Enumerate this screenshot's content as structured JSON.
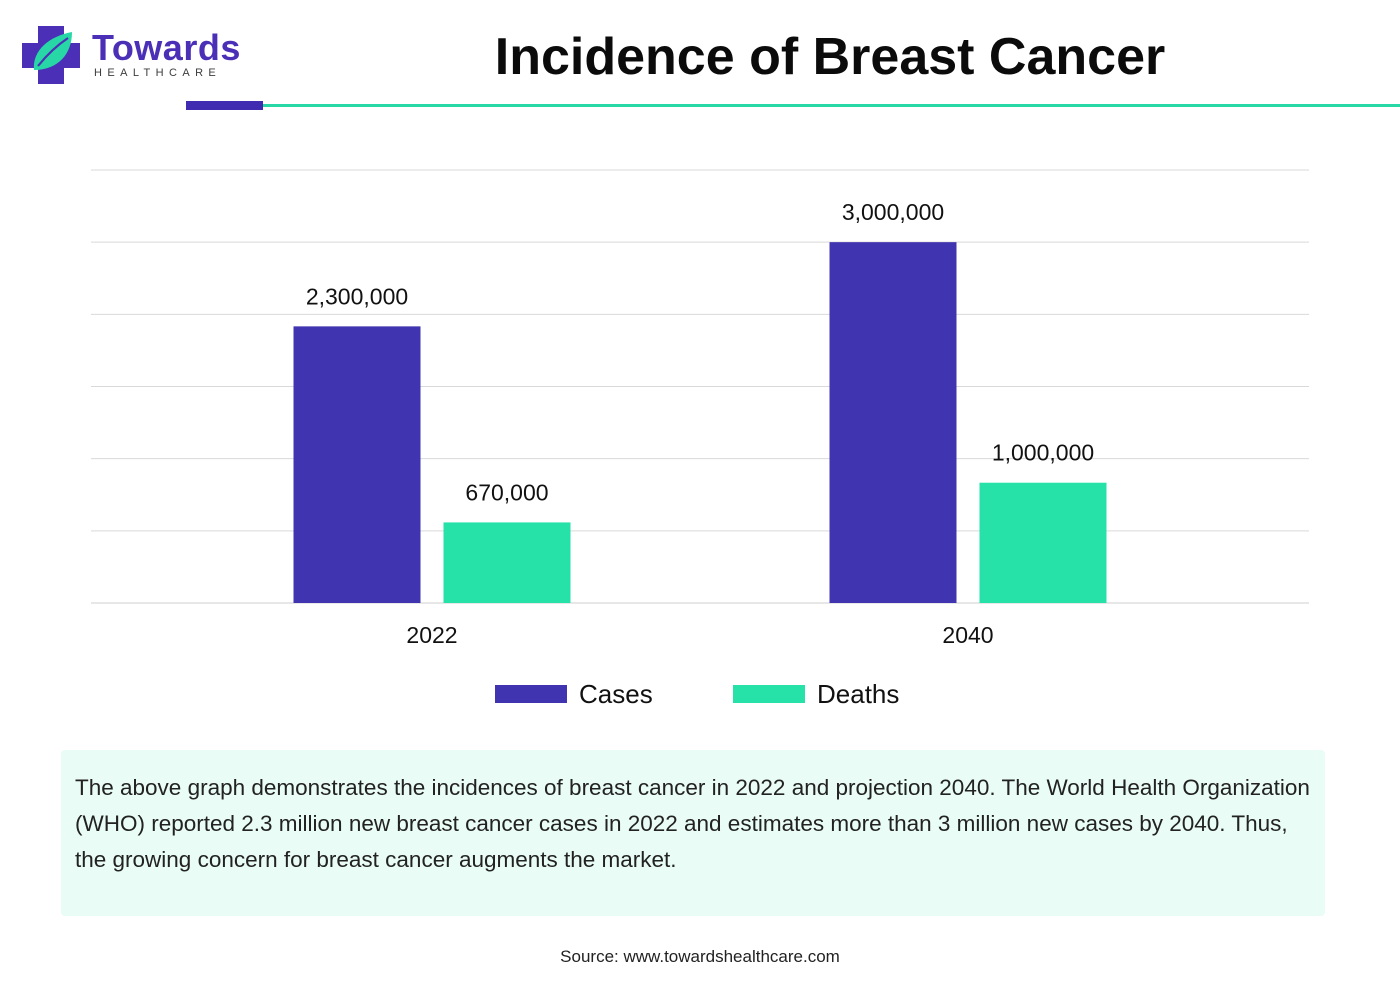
{
  "header": {
    "logo_name": "Towards",
    "logo_sub": "HEALTHCARE",
    "title": "Incidence of Breast Cancer"
  },
  "colors": {
    "brand": "#4b2fb6",
    "cases": "#4134b0",
    "deaths": "#26e2a8",
    "accent_line": "#27d8a6",
    "note_bg": "#e9fcf5",
    "grid": "#d9d9d9"
  },
  "chart_data": {
    "type": "bar",
    "title": "Incidence of Breast Cancer",
    "categories": [
      "2022",
      "2040"
    ],
    "series": [
      {
        "name": "Cases",
        "values": [
          2300000,
          3000000
        ],
        "labels": [
          "2,300,000",
          "3,000,000"
        ]
      },
      {
        "name": "Deaths",
        "values": [
          670000,
          1000000
        ],
        "labels": [
          "670,000",
          "1,000,000"
        ]
      }
    ],
    "xlabel": "",
    "ylabel": "",
    "ylim": [
      0,
      3600000
    ],
    "grid": true,
    "legend": "bottom"
  },
  "legend": {
    "cases_label": "Cases",
    "deaths_label": "Deaths"
  },
  "note": {
    "text": "The above graph demonstrates the incidences of breast cancer in 2022 and projection 2040. The World Health Organization (WHO) reported 2.3 million new breast cancer cases in 2022 and estimates more than 3 million new cases by 2040. Thus, the growing concern for breast cancer augments the market."
  },
  "footer": {
    "source": "Source: www.towardshealthcare.com"
  }
}
